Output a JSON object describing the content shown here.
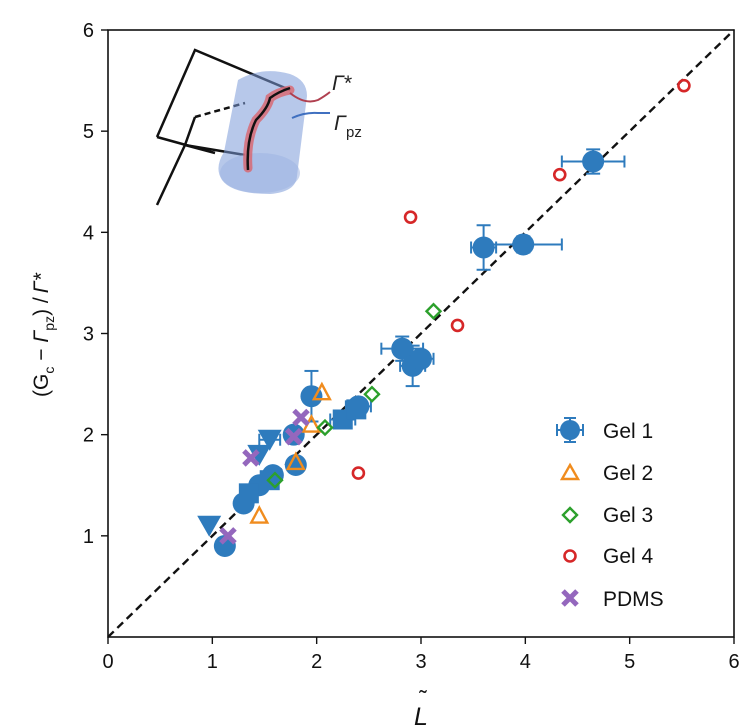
{
  "chart_data": {
    "type": "scatter",
    "title": "",
    "xlabel": "L̃",
    "ylabel": "(G_c − Γ_pz) / Γ*",
    "ylabel_parts": {
      "open": "(G",
      "sub_c": "c",
      "minus": " − ",
      "gamma": "Γ",
      "sub_pz": "pz",
      "close": ") /",
      "gamma_star": "Γ*"
    },
    "xlabel_letter": "L",
    "xlabel_tilde": "˜",
    "xlim": [
      0,
      6
    ],
    "ylim": [
      0,
      6
    ],
    "xticks": [
      "0",
      "1",
      "2",
      "3",
      "4",
      "5",
      "6"
    ],
    "yticks": [
      "1",
      "2",
      "3",
      "4",
      "5",
      "6"
    ],
    "reference_line": {
      "style": "dashed",
      "color": "#111111",
      "from": [
        0,
        0
      ],
      "to": [
        6,
        6
      ]
    },
    "legend": {
      "position": "lower-right",
      "entries": [
        "Gel 1",
        "Gel 2",
        "Gel 3",
        "Gel 4",
        "PDMS"
      ]
    },
    "inset": {
      "labels": {
        "gamma": "Γ",
        "star": "*",
        "pz": "pz"
      }
    },
    "series": [
      {
        "name": "Gel 1",
        "marker": "circle-filled",
        "color": "#2e7bbd",
        "points": [
          {
            "x": 1.12,
            "y": 0.9,
            "yerr": 0.07
          },
          {
            "x": 1.3,
            "y": 1.32,
            "xerr": 0.06
          },
          {
            "x": 1.45,
            "y": 1.5
          },
          {
            "x": 1.58,
            "y": 1.6
          },
          {
            "x": 1.8,
            "y": 1.7,
            "yerr": 0.07
          },
          {
            "x": 1.78,
            "y": 2.0
          },
          {
            "x": 1.95,
            "y": 2.38,
            "yerr": 0.25
          },
          {
            "x": 2.4,
            "y": 2.28,
            "xerr": 0.12
          },
          {
            "x": 2.82,
            "y": 2.85,
            "xerr": 0.2,
            "yerr": 0.12
          },
          {
            "x": 2.92,
            "y": 2.68,
            "xerr": 0.12,
            "yerr": 0.2
          },
          {
            "x": 3.0,
            "y": 2.75,
            "xerr": 0.12
          },
          {
            "x": 3.6,
            "y": 3.85,
            "xerr": 0.12,
            "yerr": 0.22
          },
          {
            "x": 3.98,
            "y": 3.88,
            "xerr": 0.37,
            "yerr": 0.08
          },
          {
            "x": 4.65,
            "y": 4.7,
            "xerr": 0.3,
            "yerr": 0.12
          }
        ]
      },
      {
        "name": "Gel 1",
        "marker": "square-filled",
        "color": "#2e7bbd",
        "points": [
          {
            "x": 1.35,
            "y": 1.42
          },
          {
            "x": 1.55,
            "y": 1.55
          },
          {
            "x": 2.25,
            "y": 2.15,
            "xerr": 0.12
          },
          {
            "x": 2.38,
            "y": 2.25
          }
        ]
      },
      {
        "name": "Gel 1",
        "marker": "triangle-down-filled",
        "color": "#2e7bbd",
        "points": [
          {
            "x": 0.97,
            "y": 1.1
          },
          {
            "x": 1.45,
            "y": 1.8
          },
          {
            "x": 1.55,
            "y": 1.95,
            "xerr": 0.1
          }
        ]
      },
      {
        "name": "Gel 2",
        "marker": "triangle-open",
        "color": "#f08c1e",
        "points": [
          {
            "x": 1.45,
            "y": 1.2
          },
          {
            "x": 1.8,
            "y": 1.73
          },
          {
            "x": 2.05,
            "y": 2.42
          },
          {
            "x": 1.95,
            "y": 2.1
          }
        ]
      },
      {
        "name": "Gel 3",
        "marker": "diamond-open",
        "color": "#2ca02c",
        "points": [
          {
            "x": 1.6,
            "y": 1.55
          },
          {
            "x": 2.08,
            "y": 2.07
          },
          {
            "x": 2.53,
            "y": 2.4
          },
          {
            "x": 3.12,
            "y": 3.22
          }
        ]
      },
      {
        "name": "Gel 4",
        "marker": "circle-open",
        "color": "#d62728",
        "points": [
          {
            "x": 2.4,
            "y": 1.62
          },
          {
            "x": 2.9,
            "y": 4.15
          },
          {
            "x": 3.35,
            "y": 3.08
          },
          {
            "x": 4.33,
            "y": 4.57
          },
          {
            "x": 5.52,
            "y": 5.45
          }
        ]
      },
      {
        "name": "PDMS",
        "marker": "x-filled",
        "color": "#9467bd",
        "points": [
          {
            "x": 1.15,
            "y": 1.0
          },
          {
            "x": 1.37,
            "y": 1.77
          },
          {
            "x": 1.78,
            "y": 1.98
          },
          {
            "x": 1.85,
            "y": 2.17
          }
        ]
      }
    ]
  }
}
